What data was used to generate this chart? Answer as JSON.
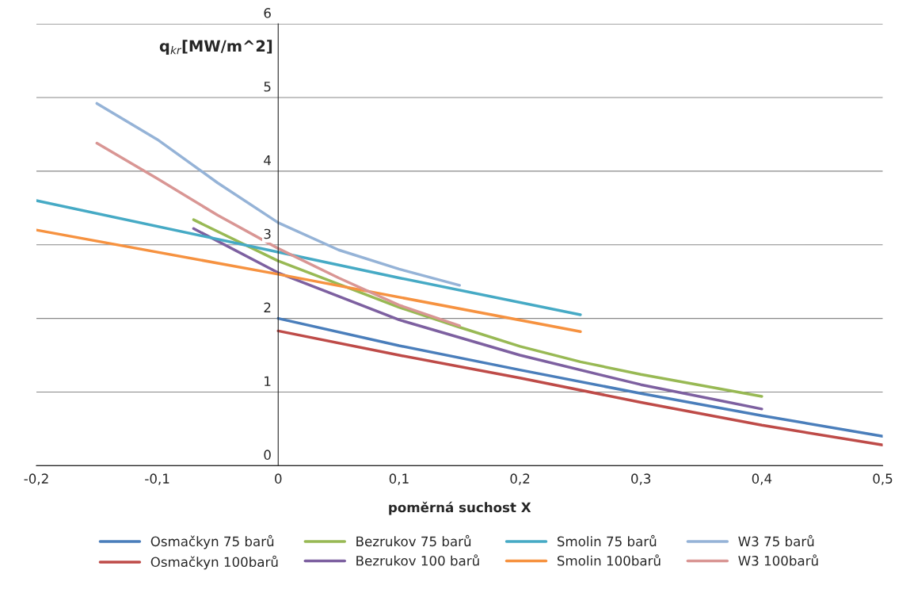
{
  "chart_data": {
    "type": "line",
    "xlabel": "poměrná suchost X",
    "ylabel": "q$_{kr}$[MW/m^2]",
    "xlim": [
      -0.2,
      0.5
    ],
    "ylim": [
      0,
      6
    ],
    "xticks": [
      {
        "value": -0.2,
        "label": "-0,2"
      },
      {
        "value": -0.1,
        "label": "-0,1"
      },
      {
        "value": 0,
        "label": "0"
      },
      {
        "value": 0.1,
        "label": "0,1"
      },
      {
        "value": 0.2,
        "label": "0,2"
      },
      {
        "value": 0.3,
        "label": "0,3"
      },
      {
        "value": 0.4,
        "label": "0,4"
      },
      {
        "value": 0.5,
        "label": "0,5"
      }
    ],
    "yticks": [
      0,
      1,
      2,
      3,
      4,
      5,
      6
    ],
    "grid": "y",
    "legend": "bottom",
    "marker": "none",
    "line_style": "solid",
    "series": [
      {
        "name": "Osmačkyn 75 barů",
        "color": "#4a7ebb",
        "x": [
          0,
          0.1,
          0.2,
          0.3,
          0.4,
          0.5
        ],
        "values": [
          2.0,
          1.63,
          1.3,
          0.98,
          0.68,
          0.4
        ]
      },
      {
        "name": "Osmačkyn 100barů",
        "color": "#be4b48",
        "x": [
          0,
          0.1,
          0.2,
          0.3,
          0.4,
          0.5
        ],
        "values": [
          1.83,
          1.5,
          1.19,
          0.86,
          0.55,
          0.28
        ]
      },
      {
        "name": "Bezrukov 75 barů",
        "color": "#98b954",
        "x": [
          -0.07,
          0,
          0.1,
          0.15,
          0.2,
          0.25,
          0.3,
          0.4
        ],
        "values": [
          3.34,
          2.78,
          2.15,
          1.88,
          1.62,
          1.41,
          1.24,
          0.94
        ]
      },
      {
        "name": "Bezrukov 100 barů",
        "color": "#7d60a0",
        "x": [
          -0.07,
          0,
          0.1,
          0.2,
          0.3,
          0.4
        ],
        "values": [
          3.22,
          2.62,
          1.98,
          1.5,
          1.1,
          0.77
        ]
      },
      {
        "name": "Smolin 75 barů",
        "color": "#46aac5",
        "x": [
          -0.2,
          0,
          0.1,
          0.25
        ],
        "values": [
          3.6,
          2.9,
          2.55,
          2.05
        ]
      },
      {
        "name": "Smolin 100barů",
        "color": "#f69240",
        "x": [
          -0.2,
          0,
          0.25
        ],
        "values": [
          3.2,
          2.6,
          1.82
        ]
      },
      {
        "name": "W3 75 barů",
        "color": "#95b3d7",
        "x": [
          -0.15,
          -0.1,
          -0.05,
          0,
          0.05,
          0.1,
          0.15
        ],
        "values": [
          4.92,
          4.43,
          3.84,
          3.3,
          2.93,
          2.67,
          2.45
        ]
      },
      {
        "name": "W3 100barů",
        "color": "#d99694",
        "x": [
          -0.15,
          -0.1,
          -0.05,
          0,
          0.05,
          0.1,
          0.15
        ],
        "values": [
          4.38,
          3.9,
          3.4,
          2.95,
          2.55,
          2.18,
          1.9
        ]
      }
    ]
  }
}
